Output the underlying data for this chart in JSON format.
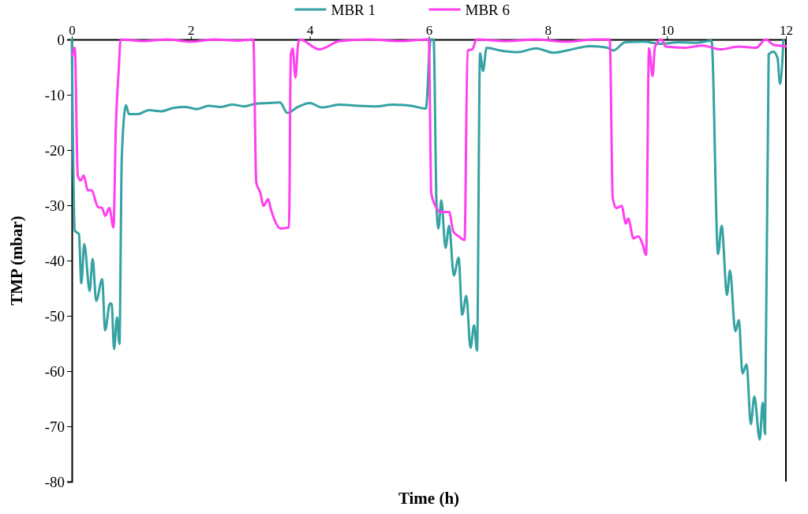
{
  "chart_data": {
    "type": "line",
    "xlabel": "Time (h)",
    "ylabel": "TMP (mbar)",
    "xlim": [
      0,
      12
    ],
    "ylim": [
      -80,
      0
    ],
    "xticks": [
      0,
      2,
      4,
      6,
      8,
      10,
      12
    ],
    "yticks": [
      -80,
      -70,
      -60,
      -50,
      -40,
      -30,
      -20,
      -10,
      0
    ],
    "grid": false,
    "legend": "top",
    "marker": "none",
    "line_style": "solid",
    "series": [
      {
        "name": "MBR 1",
        "color": "#36a2a2",
        "x": [
          0,
          0.05,
          0.12,
          0.16,
          0.21,
          0.3,
          0.35,
          0.41,
          0.51,
          0.56,
          0.64,
          0.67,
          0.71,
          0.76,
          0.8,
          0.84,
          0.91,
          0.96,
          1.1,
          1.3,
          1.5,
          1.7,
          1.9,
          2.1,
          2.3,
          2.5,
          2.7,
          2.9,
          3.1,
          3.3,
          3.5,
          3.62,
          3.8,
          4.0,
          4.2,
          4.5,
          4.8,
          5.1,
          5.4,
          5.7,
          5.95,
          6.03,
          6.08,
          6.13,
          6.16,
          6.21,
          6.28,
          6.34,
          6.42,
          6.5,
          6.56,
          6.63,
          6.7,
          6.76,
          6.81,
          6.86,
          6.91,
          6.97,
          7.2,
          7.5,
          7.8,
          8.1,
          8.4,
          8.7,
          9.0,
          9.1,
          9.3,
          9.6,
          9.9,
          10.2,
          10.5,
          10.75,
          10.86,
          10.92,
          11.01,
          11.06,
          11.15,
          11.21,
          11.27,
          11.34,
          11.41,
          11.47,
          11.56,
          11.61,
          11.65,
          11.71,
          11.79,
          11.86,
          11.9,
          11.96
        ],
        "values": [
          0,
          -34.6,
          -35.2,
          -44.1,
          -37,
          -45.5,
          -39.7,
          -47.3,
          -43.4,
          -52.6,
          -47.8,
          -47.8,
          -56,
          -50.3,
          -55.1,
          -21.3,
          -11.9,
          -13.5,
          -13.5,
          -12.8,
          -13,
          -12.4,
          -12.2,
          -12.6,
          -12,
          -12.2,
          -11.8,
          -12.1,
          -11.6,
          -11.5,
          -11.4,
          -13.3,
          -12.2,
          -11.5,
          -12.3,
          -11.8,
          -12,
          -12.1,
          -11.8,
          -12,
          -12.5,
          0,
          0,
          -30.5,
          -34.2,
          -29.1,
          -37.7,
          -33.7,
          -42.7,
          -39.5,
          -49.8,
          -46.4,
          -55.8,
          -51.7,
          -56.3,
          -2.5,
          -5.7,
          -1.5,
          -2,
          -2.3,
          -1.6,
          -2.4,
          -1.8,
          -1.2,
          -1.5,
          -2,
          -0.5,
          -0.4,
          -0.8,
          -0.5,
          -0.6,
          -0.2,
          -38.8,
          -33.7,
          -46.2,
          -41.8,
          -52.8,
          -50.8,
          -60.4,
          -58.8,
          -69.6,
          -64.6,
          -72.4,
          -65.7,
          -71.4,
          -2.7,
          -2.2,
          -3.4,
          -8,
          -0.1
        ]
      },
      {
        "name": "MBR 6",
        "color": "#ff3ff0",
        "x": [
          0.01,
          0.05,
          0.1,
          0.15,
          0.2,
          0.27,
          0.33,
          0.44,
          0.51,
          0.56,
          0.63,
          0.7,
          0.74,
          0.79,
          0.82,
          1.2,
          1.6,
          2.0,
          2.4,
          2.8,
          3.05,
          3.1,
          3.17,
          3.22,
          3.3,
          3.34,
          3.51,
          3.65,
          3.68,
          3.71,
          3.76,
          3.8,
          3.83,
          4.16,
          4.5,
          5.0,
          5.5,
          6.0,
          6.04,
          6.11,
          6.19,
          6.34,
          6.41,
          6.5,
          6.6,
          6.65,
          6.73,
          6.8,
          7.3,
          7.8,
          8.3,
          8.8,
          9.04,
          9.09,
          9.15,
          9.24,
          9.31,
          9.35,
          9.44,
          9.52,
          9.59,
          9.65,
          9.7,
          9.76,
          9.8,
          9.91,
          9.98,
          10.3,
          10.6,
          10.9,
          11.2,
          11.5,
          11.66,
          11.8,
          12.0
        ],
        "values": [
          -2.9,
          -1.5,
          -24.6,
          -25.5,
          -24.6,
          -27.3,
          -27.3,
          -30.3,
          -30.5,
          -31.9,
          -30.5,
          -34,
          -15.8,
          -5.2,
          0,
          -0.3,
          0,
          -0.4,
          0,
          -0.2,
          0,
          -25.9,
          -27.8,
          -30.1,
          -28.9,
          -30.5,
          -34.2,
          -34,
          -2.9,
          -1.6,
          -6.9,
          -1.1,
          0,
          -1.8,
          -0.3,
          0,
          -0.3,
          0,
          -27.8,
          -30.1,
          -31.2,
          -31.2,
          -34.7,
          -35.6,
          -36.3,
          -2,
          -1.8,
          0,
          -0.3,
          0,
          -0.4,
          0,
          0,
          -28.7,
          -30.5,
          -30.1,
          -33.3,
          -32.4,
          -36,
          -35.6,
          -37,
          -39,
          -1.6,
          -6.6,
          -1.3,
          0,
          -1.3,
          -1.5,
          -1.1,
          -1.8,
          -1.3,
          -1.5,
          0,
          -1,
          -1.2
        ]
      }
    ]
  }
}
